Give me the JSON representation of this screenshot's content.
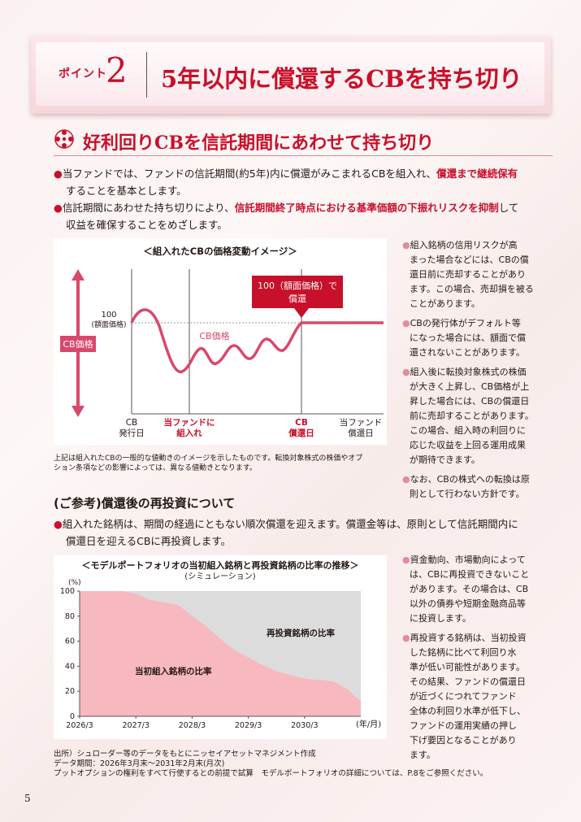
{
  "header": {
    "point_word": "ポイント",
    "point_number": "2",
    "title": "5年以内に償還するCBを持ち切り"
  },
  "section1": {
    "heading": "好利回りCBを信託期間にあわせて持ち切り",
    "bullets": [
      {
        "l1a": "当ファンドでは、ファンドの信託期間(約5年)内に償還がみこまれるCBを組入れ、",
        "l1em": "償還まで継続保有",
        "l2": "することを基本とします。"
      },
      {
        "l1a": "信託期間にあわせた持ち切りにより、",
        "l1em": "信託期間終了時点における基準価額の下振れリスクを抑制",
        "l1b": "して",
        "l2": "収益を確保することをめざします。"
      }
    ]
  },
  "chart1": {
    "title": "＜組入れたCBの価格変動イメージ＞",
    "y_marker_value": "100",
    "y_marker_label": "(額面価格)",
    "y_axis_label": "CB価格",
    "series_label": "CB価格",
    "callout_l1": "100（額面価格）で",
    "callout_l2": "償還",
    "x_ticks": [
      {
        "l1": "CB",
        "l2": "発行日",
        "red": false
      },
      {
        "l1": "当ファンドに",
        "l2": "組入れ",
        "red": true
      },
      {
        "l1": "CB",
        "l2": "償還日",
        "red": true
      },
      {
        "l1": "当ファンド",
        "l2": "償還日",
        "red": false
      }
    ],
    "footnote_l1": "上記は組入れたCBの一般的な値動きのイメージを示したものです。転換対象株式の株価やオプ",
    "footnote_l2": "ション条項などの影響によっては、異なる値動きとなります。"
  },
  "notes1": [
    [
      "組入銘柄の信用リスクが高",
      "まった場合などには、CBの償",
      "還日前に売却することがあり",
      "ます。この場合、売却損を被る",
      "ことがあります。"
    ],
    [
      "CBの発行体がデフォルト等",
      "になった場合には、額面で償",
      "還されないことがあります。"
    ],
    [
      "組入後に転換対象株式の株価",
      "が大きく上昇し、CB価格が上",
      "昇した場合には、CBの償還日",
      "前に売却することがあります。",
      "この場合、組入時の利回りに",
      "応じた収益を上回る運用成果",
      "が期待できます。"
    ],
    [
      "なお、CBの株式への転換は原",
      "則として行わない方針です。"
    ]
  ],
  "section2": {
    "heading": "(ご参考)償還後の再投資について",
    "l1": "組入れた銘柄は、期間の経過にともない順次償還を迎えます。償還金等は、原則として信託期間内に",
    "l2": "償還日を迎えるCBに再投資します。"
  },
  "chart_data": {
    "type": "area",
    "title": "＜モデルポートフォリオの当初組入銘柄と再投資銘柄の比率の推移＞",
    "subtitle": "(シミュレーション)",
    "ylabel": "(%)",
    "xlabel": "(年/月)",
    "ylim": [
      0,
      100
    ],
    "yticks": [
      0,
      20,
      40,
      60,
      80,
      100
    ],
    "xticks": [
      "2026/3",
      "2027/3",
      "2028/3",
      "2029/3",
      "2030/3"
    ],
    "x": [
      "2026/3",
      "2026/6",
      "2026/9",
      "2026/12",
      "2027/3",
      "2027/6",
      "2027/9",
      "2027/12",
      "2028/3",
      "2028/6",
      "2028/9",
      "2028/12",
      "2029/3",
      "2029/6",
      "2029/9",
      "2029/12",
      "2030/3",
      "2030/6",
      "2030/9",
      "2030/12",
      "2031/2"
    ],
    "series": [
      {
        "name": "当初組入銘柄の比率",
        "color": "#f7b8bf",
        "values": [
          100,
          100,
          100,
          100,
          98,
          93,
          91,
          89,
          80,
          72,
          62,
          53,
          47,
          41,
          36,
          33,
          30,
          29,
          28,
          22,
          12
        ]
      },
      {
        "name": "再投資銘柄の比率",
        "color": "#dcdcdc",
        "values": [
          0,
          0,
          0,
          0,
          2,
          7,
          9,
          11,
          20,
          28,
          38,
          47,
          53,
          59,
          64,
          67,
          70,
          71,
          72,
          78,
          88
        ]
      }
    ]
  },
  "notes2": [
    [
      "資金動向、市場動向によって",
      "は、CBに再投資できないこと",
      "があります。その場合は、CB",
      "以外の債券や短期金融商品等",
      "に投資します。"
    ],
    [
      "再投資する銘柄は、当初投資",
      "した銘柄に比べて利回り水",
      "準が低い可能性があります。",
      "その結果、ファンドの償還日",
      "が近づくにつれてファンド",
      "全体の利回り水準が低下し、",
      "ファンドの運用実績の押し",
      "下げ要因となることがあり",
      "ます。"
    ]
  ],
  "source": {
    "l1": "出所）シュローダー等のデータをもとにニッセイアセットマネジメント作成",
    "l2": "データ期間：2026年3月末～2031年2月末(月次)",
    "l3": "プットオプションの権利をすべて行使するとの前提で試算　モデルポートフォリオの詳細については、P.8をご参照ください。"
  },
  "page_number": "5",
  "colors": {
    "accent": "#c9102a",
    "pink_axis": "#d9486a",
    "area_pink": "#f7b8bf",
    "area_gray": "#dcdcdc"
  }
}
